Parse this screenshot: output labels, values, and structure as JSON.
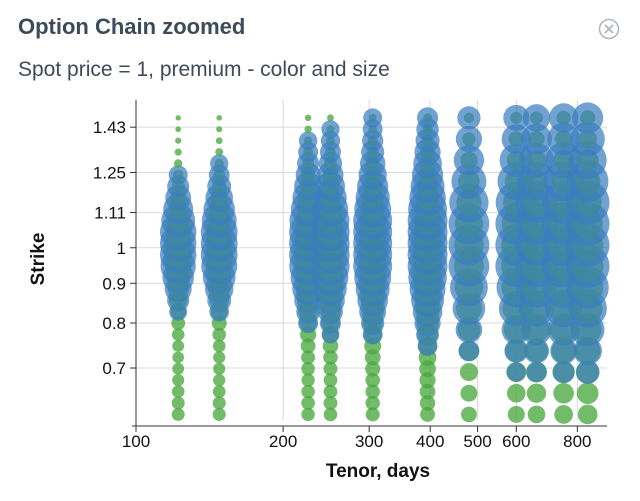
{
  "header": {
    "title": "Option Chain zoomed",
    "subtitle": "Spot price = 1, premium - color and size",
    "close_icon": "close-icon"
  },
  "colors": {
    "put": "#3a7ebf",
    "call": "#4aa83f",
    "grid": "#d9d9d9"
  },
  "chart_data": {
    "type": "scatter",
    "xlabel": "Tenor, days",
    "ylabel": "Strike",
    "x_scale": "log",
    "y_scale": "log",
    "xlim": [
      100,
      920
    ],
    "ylim": [
      0.6,
      1.55
    ],
    "x_ticks": [
      100,
      200,
      300,
      400,
      500,
      600,
      800
    ],
    "y_ticks": [
      0.7,
      0.8,
      0.9,
      1,
      1.11,
      1.25,
      1.43
    ],
    "grid": true,
    "encoding": {
      "color": "option type",
      "size": "premium"
    },
    "tenors": [
      122,
      148,
      225,
      250,
      305,
      395,
      480,
      600,
      660,
      750,
      840
    ],
    "strike_count_per_tenor": [
      27,
      27,
      27,
      27,
      27,
      27,
      15,
      15,
      15,
      15,
      15
    ],
    "strike_range": [
      0.61,
      1.47
    ]
  }
}
